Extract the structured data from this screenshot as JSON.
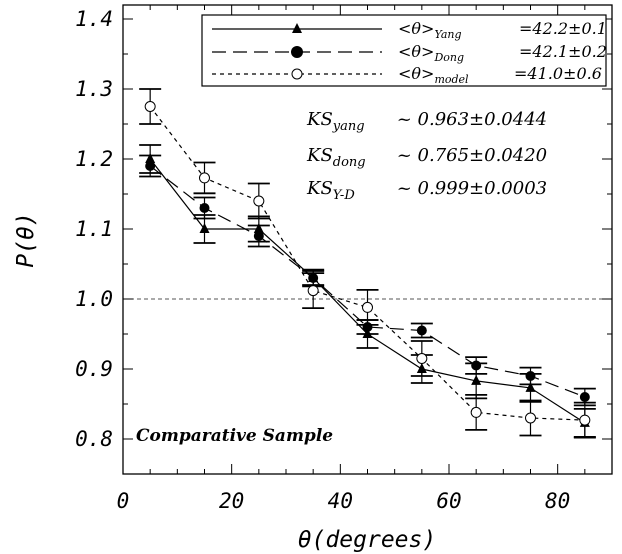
{
  "chart_data": {
    "type": "line",
    "title": "",
    "xlabel": "θ(degrees)",
    "ylabel": "P(θ)",
    "xlim": [
      0,
      90
    ],
    "ylim": [
      0.75,
      1.42
    ],
    "x_ticks": [
      0,
      20,
      40,
      60,
      80
    ],
    "y_ticks": [
      0.8,
      0.9,
      1.0,
      1.1,
      1.2,
      1.3,
      1.4
    ],
    "x_tick_labels": [
      "0",
      "20",
      "40",
      "60",
      "80"
    ],
    "y_tick_labels": [
      "0.8",
      "0.9",
      "1.0",
      "1.1",
      "1.2",
      "1.3",
      "1.4"
    ],
    "grid": false,
    "reference_line": {
      "y": 1.0,
      "style": "dashed"
    },
    "legend_position": "top-right",
    "annotation": "Comparative Sample",
    "x": [
      5,
      15,
      25,
      35,
      45,
      55,
      65,
      75,
      85
    ],
    "series": [
      {
        "name": "Yang",
        "legend_main": "<θ>",
        "legend_sub": "Yang",
        "legend_value": "=42.2±0.1",
        "marker": "triangle",
        "line_style": "solid",
        "values": [
          1.2,
          1.1,
          1.1,
          1.03,
          0.95,
          0.9,
          0.883,
          0.873,
          0.823
        ],
        "errors": [
          0.02,
          0.02,
          0.018,
          0.012,
          0.02,
          0.02,
          0.025,
          0.02,
          0.02
        ],
        "step_segments": [
          [
            1.2,
            1.1
          ],
          [
            1.1,
            1.1
          ],
          [
            1.1,
            1.1
          ],
          [
            1.1,
            1.025
          ],
          [
            1.03,
            0.95
          ],
          [
            0.95,
            0.9
          ],
          [
            0.9,
            0.883
          ],
          [
            0.883,
            0.873
          ],
          [
            0.873,
            0.823
          ]
        ]
      },
      {
        "name": "Dong",
        "legend_main": "<θ>",
        "legend_sub": "Dong",
        "legend_value": "=42.1±0.2",
        "marker": "filled-circle",
        "line_style": "long-dash",
        "values": [
          1.19,
          1.13,
          1.09,
          1.03,
          0.96,
          0.955,
          0.905,
          0.89,
          0.86
        ],
        "errors": [
          0.015,
          0.015,
          0.015,
          0.01,
          0.01,
          0.01,
          0.012,
          0.012,
          0.012
        ]
      },
      {
        "name": "model",
        "legend_main": "<θ>",
        "legend_sub": "model",
        "legend_value": "=41.0±0.6",
        "marker": "open-circle",
        "line_style": "short-dash",
        "values": [
          1.275,
          1.173,
          1.14,
          1.012,
          0.988,
          0.915,
          0.838,
          0.83,
          0.827
        ],
        "errors": [
          0.025,
          0.022,
          0.025,
          0.025,
          0.025,
          0.025,
          0.025,
          0.025,
          0.025
        ]
      }
    ],
    "ks_stats": [
      {
        "main": "KS",
        "sub": "yang",
        "value": "~ 0.963±0.0444"
      },
      {
        "main": "KS",
        "sub": "dong",
        "value": "~ 0.765±0.0420"
      },
      {
        "main": "KS",
        "sub": "Y-D",
        "value": "~ 0.999±0.0003"
      }
    ]
  }
}
